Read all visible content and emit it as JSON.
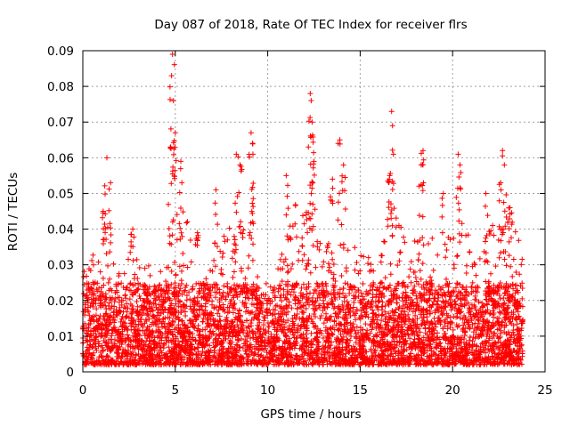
{
  "chart_data": {
    "type": "scatter",
    "title": "Day 087 of 2018, Rate Of TEC Index for receiver flrs",
    "xlabel": "GPS time / hours",
    "ylabel": "ROTI / TECUs",
    "xlim": [
      0,
      25
    ],
    "ylim": [
      0,
      0.09
    ],
    "x_ticks": [
      "0",
      "5",
      "10",
      "15",
      "20",
      "25"
    ],
    "y_ticks": [
      "0",
      "0.01",
      "0.02",
      "0.03",
      "0.04",
      "0.05",
      "0.06",
      "0.07",
      "0.08",
      "0.09"
    ],
    "grid": true,
    "marker": "+",
    "series": [
      {
        "name": "ROTI",
        "color": "#ff0000",
        "density_profile": {
          "x_range": [
            0,
            23.8
          ],
          "baseline_min": 0.002,
          "bulk_max": 0.025,
          "upper_envelope_x": [
            0,
            1,
            1.3,
            2,
            2.7,
            3.5,
            4.5,
            4.9,
            5.3,
            5.8,
            6.0,
            7.5,
            8.3,
            9.2,
            9.8,
            10.3,
            11.0,
            12.3,
            13.0,
            13.9,
            15.0,
            15.9,
            16.7,
            17.5,
            18.4,
            19.5,
            20.3,
            21.5,
            22.6,
            23.0,
            23.8
          ],
          "upper_envelope_y": [
            0.03,
            0.035,
            0.04,
            0.03,
            0.035,
            0.03,
            0.03,
            0.045,
            0.05,
            0.04,
            0.02,
            0.04,
            0.045,
            0.045,
            0.02,
            0.02,
            0.045,
            0.05,
            0.035,
            0.04,
            0.035,
            0.03,
            0.045,
            0.04,
            0.04,
            0.035,
            0.045,
            0.035,
            0.05,
            0.045,
            0.035
          ]
        },
        "peaks": [
          {
            "x": 1.3,
            "y": 0.06
          },
          {
            "x": 1.5,
            "y": 0.053
          },
          {
            "x": 1.1,
            "y": 0.045
          },
          {
            "x": 2.7,
            "y": 0.04
          },
          {
            "x": 4.85,
            "y": 0.089
          },
          {
            "x": 4.8,
            "y": 0.083
          },
          {
            "x": 4.9,
            "y": 0.076
          },
          {
            "x": 5.0,
            "y": 0.067
          },
          {
            "x": 4.75,
            "y": 0.063
          },
          {
            "x": 5.3,
            "y": 0.059
          },
          {
            "x": 6.2,
            "y": 0.039
          },
          {
            "x": 7.2,
            "y": 0.051
          },
          {
            "x": 8.3,
            "y": 0.061
          },
          {
            "x": 8.5,
            "y": 0.058
          },
          {
            "x": 9.1,
            "y": 0.067
          },
          {
            "x": 9.2,
            "y": 0.061
          },
          {
            "x": 12.3,
            "y": 0.078
          },
          {
            "x": 12.35,
            "y": 0.076
          },
          {
            "x": 12.4,
            "y": 0.07
          },
          {
            "x": 12.2,
            "y": 0.063
          },
          {
            "x": 12.5,
            "y": 0.059
          },
          {
            "x": 11.0,
            "y": 0.055
          },
          {
            "x": 13.9,
            "y": 0.065
          },
          {
            "x": 14.1,
            "y": 0.058
          },
          {
            "x": 13.5,
            "y": 0.054
          },
          {
            "x": 16.7,
            "y": 0.073
          },
          {
            "x": 16.75,
            "y": 0.069
          },
          {
            "x": 16.8,
            "y": 0.061
          },
          {
            "x": 16.6,
            "y": 0.055
          },
          {
            "x": 18.4,
            "y": 0.062
          },
          {
            "x": 18.3,
            "y": 0.058
          },
          {
            "x": 19.5,
            "y": 0.05
          },
          {
            "x": 20.3,
            "y": 0.061
          },
          {
            "x": 20.4,
            "y": 0.058
          },
          {
            "x": 22.7,
            "y": 0.062
          },
          {
            "x": 22.8,
            "y": 0.058
          },
          {
            "x": 22.6,
            "y": 0.053
          },
          {
            "x": 23.1,
            "y": 0.046
          },
          {
            "x": 21.8,
            "y": 0.05
          }
        ]
      }
    ]
  }
}
